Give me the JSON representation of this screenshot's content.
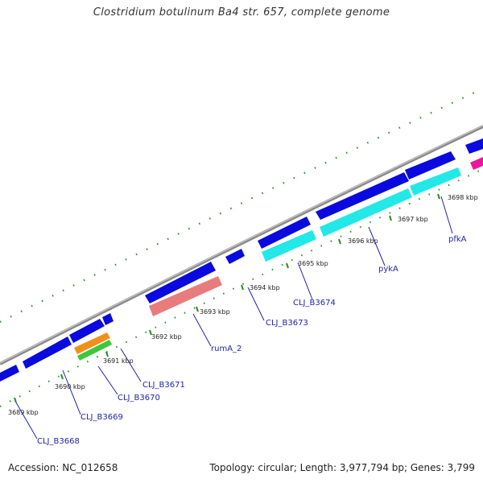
{
  "title": "Clostridium botulinum Ba4 str. 657, complete genome",
  "accession_text": "Accession: NC_012658",
  "topology_text": "Topology: circular; Length: 3,977,794 bp; Genes: 3,799",
  "scale_labels": [
    "3689 kbp",
    "3690 kbp",
    "3691 kbp",
    "3692 kbp",
    "3693 kbp",
    "3694 kbp",
    "3695 kbp",
    "3696 kbp",
    "3697 kbp",
    "3698 kbp"
  ],
  "gene_labels": [
    "CLJ_B3668",
    "CLJ_B3669",
    "CLJ_B3670",
    "CLJ_B3671",
    "rumA_2",
    "CLJ_B3673",
    "CLJ_B3674",
    "pykA",
    "pfkA"
  ],
  "colors": {
    "cds_forward": "#0a0adf",
    "trna_cyan": "#22e8e8",
    "rna_pink": "#e87c7c",
    "orange_feature": "#f0901a",
    "green_feature": "#3cc83c",
    "magenta_feature": "#e8189a",
    "backbone": "#8a8a8a",
    "ticks": "#2a8a2a",
    "label_blue": "#2222aa"
  }
}
